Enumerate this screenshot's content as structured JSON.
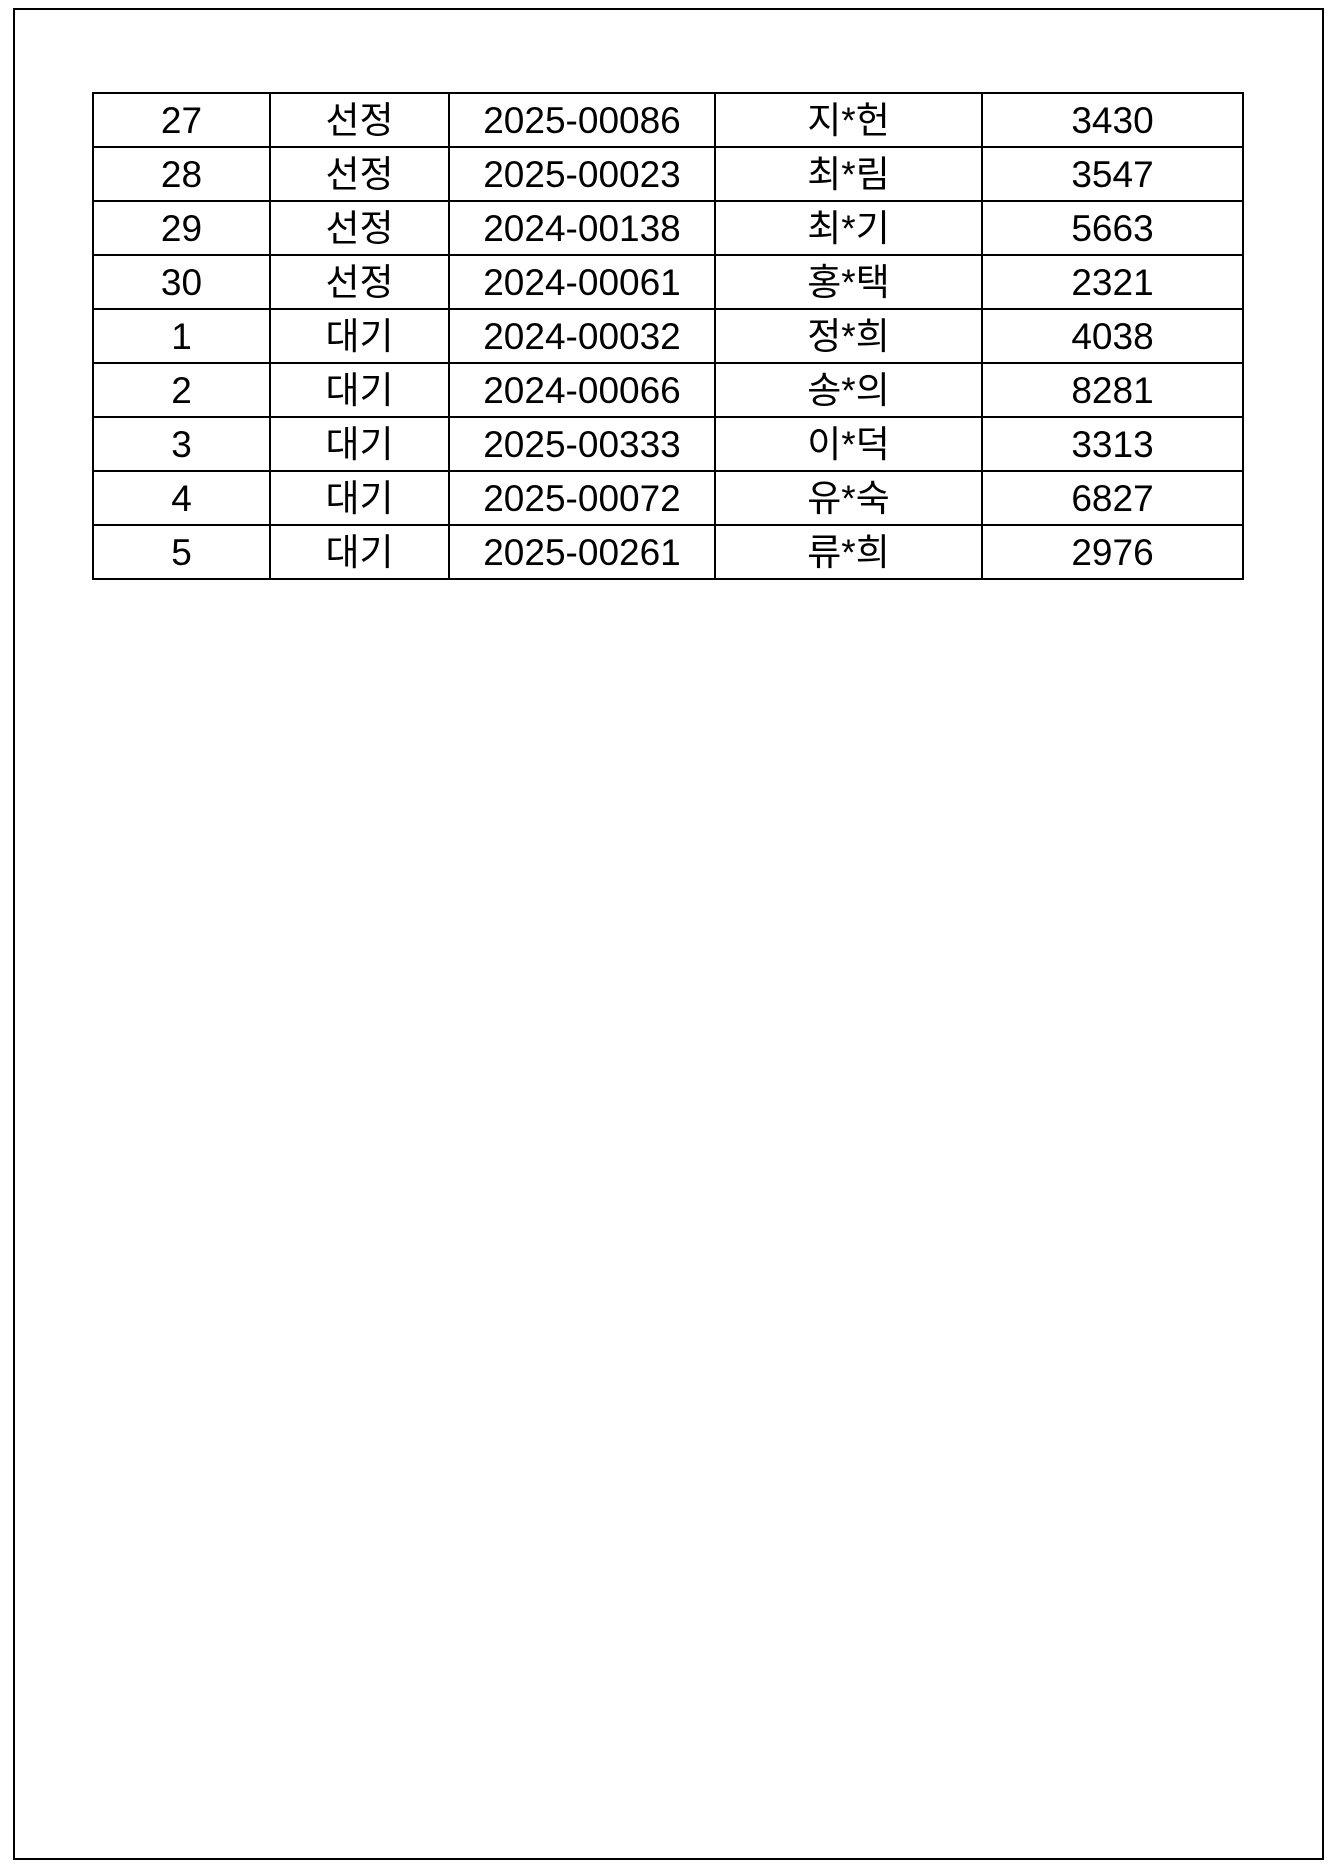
{
  "page": {
    "background_color": "#ffffff",
    "border_color": "#000000"
  },
  "table": {
    "rows": [
      {
        "rank": "27",
        "status": "선정",
        "application_id": "2025-00086",
        "name": "지*헌",
        "number": "3430"
      },
      {
        "rank": "28",
        "status": "선정",
        "application_id": "2025-00023",
        "name": "최*림",
        "number": "3547"
      },
      {
        "rank": "29",
        "status": "선정",
        "application_id": "2024-00138",
        "name": "최*기",
        "number": "5663"
      },
      {
        "rank": "30",
        "status": "선정",
        "application_id": "2024-00061",
        "name": "홍*택",
        "number": "2321"
      },
      {
        "rank": "1",
        "status": "대기",
        "application_id": "2024-00032",
        "name": "정*희",
        "number": "4038"
      },
      {
        "rank": "2",
        "status": "대기",
        "application_id": "2024-00066",
        "name": "송*의",
        "number": "8281"
      },
      {
        "rank": "3",
        "status": "대기",
        "application_id": "2025-00333",
        "name": "이*덕",
        "number": "3313"
      },
      {
        "rank": "4",
        "status": "대기",
        "application_id": "2025-00072",
        "name": "유*숙",
        "number": "6827"
      },
      {
        "rank": "5",
        "status": "대기",
        "application_id": "2025-00261",
        "name": "류*희",
        "number": "2976"
      }
    ]
  }
}
